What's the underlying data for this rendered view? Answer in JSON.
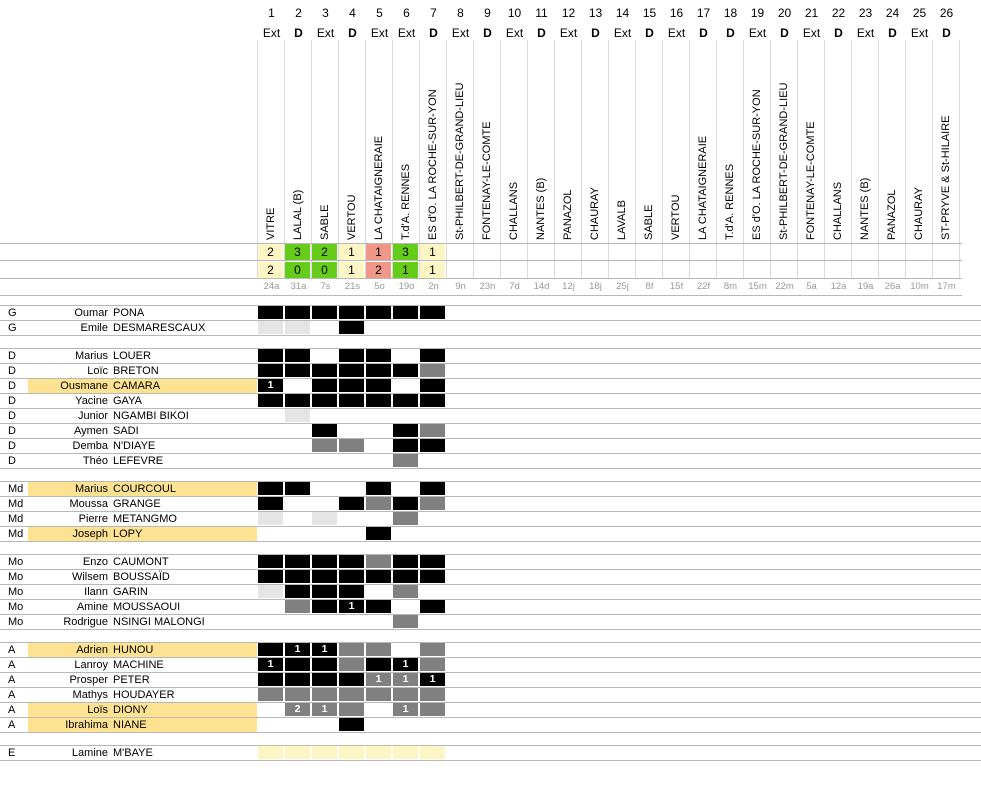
{
  "colors": {
    "black": "#000000",
    "gray": "#808080",
    "light": "#e5e5e5",
    "win": "#66cc1a",
    "loss": "#f19788",
    "draw": "#fdf5c4",
    "highlight": "#fde291",
    "empty": "#ececec"
  },
  "matches": [
    {
      "n": "1",
      "ha": "Ext",
      "opp": "VITRE",
      "s1": "2",
      "s2": "2",
      "date": "24a",
      "res": "draw"
    },
    {
      "n": "2",
      "ha": "D",
      "opp": "LALAL (B)",
      "s1": "3",
      "s2": "0",
      "date": "31a",
      "res": "win"
    },
    {
      "n": "3",
      "ha": "Ext",
      "opp": "SABLE",
      "s1": "2",
      "s2": "0",
      "date": "7s",
      "res": "win"
    },
    {
      "n": "4",
      "ha": "D",
      "opp": "VERTOU",
      "s1": "1",
      "s2": "1",
      "date": "21s",
      "res": "draw"
    },
    {
      "n": "5",
      "ha": "Ext",
      "opp": "LA CHATAIGNERAIE",
      "s1": "1",
      "s2": "2",
      "date": "5o",
      "res": "loss"
    },
    {
      "n": "6",
      "ha": "Ext",
      "opp": "T.d'A. RENNES",
      "s1": "3",
      "s2": "1",
      "date": "19o",
      "res": "win"
    },
    {
      "n": "7",
      "ha": "D",
      "opp": "ES d'O. LA ROCHE-SUR-YON",
      "s1": "1",
      "s2": "1",
      "date": "2n",
      "res": "draw"
    },
    {
      "n": "8",
      "ha": "Ext",
      "opp": "St-PHILBERT-DE-GRAND-LIEU",
      "s1": "",
      "s2": "",
      "date": "9n",
      "res": "none"
    },
    {
      "n": "9",
      "ha": "D",
      "opp": "FONTENAY-LE-COMTE",
      "s1": "",
      "s2": "",
      "date": "23n",
      "res": "none"
    },
    {
      "n": "10",
      "ha": "Ext",
      "opp": "CHALLANS",
      "s1": "",
      "s2": "",
      "date": "7d",
      "res": "none"
    },
    {
      "n": "11",
      "ha": "D",
      "opp": "NANTES (B)",
      "s1": "",
      "s2": "",
      "date": "14d",
      "res": "none"
    },
    {
      "n": "12",
      "ha": "Ext",
      "opp": "PANAZOL",
      "s1": "",
      "s2": "",
      "date": "12j",
      "res": "none"
    },
    {
      "n": "13",
      "ha": "D",
      "opp": "CHAURAY",
      "s1": "",
      "s2": "",
      "date": "18j",
      "res": "none"
    },
    {
      "n": "14",
      "ha": "Ext",
      "opp": "LAVALB",
      "s1": "",
      "s2": "",
      "date": "25j",
      "res": "none"
    },
    {
      "n": "15",
      "ha": "D",
      "opp": "SABLE",
      "s1": "",
      "s2": "",
      "date": "8f",
      "res": "none"
    },
    {
      "n": "16",
      "ha": "Ext",
      "opp": "VERTOU",
      "s1": "",
      "s2": "",
      "date": "15f",
      "res": "none"
    },
    {
      "n": "17",
      "ha": "D",
      "opp": "LA CHATAIGNERAIE",
      "s1": "",
      "s2": "",
      "date": "22f",
      "res": "none"
    },
    {
      "n": "18",
      "ha": "D",
      "opp": "T.d'A. RENNES",
      "s1": "",
      "s2": "",
      "date": "8m",
      "res": "none"
    },
    {
      "n": "19",
      "ha": "Ext",
      "opp": "ES d'O. LA ROCHE-SUR-YON",
      "s1": "",
      "s2": "",
      "date": "15m",
      "res": "none"
    },
    {
      "n": "20",
      "ha": "D",
      "opp": "St-PHILBERT-DE-GRAND-LIEU",
      "s1": "",
      "s2": "",
      "date": "22m",
      "res": "none"
    },
    {
      "n": "21",
      "ha": "Ext",
      "opp": "FONTENAY-LE-COMTE",
      "s1": "",
      "s2": "",
      "date": "5a",
      "res": "none"
    },
    {
      "n": "22",
      "ha": "D",
      "opp": "CHALLANS",
      "s1": "",
      "s2": "",
      "date": "12a",
      "res": "none"
    },
    {
      "n": "23",
      "ha": "Ext",
      "opp": "NANTES (B)",
      "s1": "",
      "s2": "",
      "date": "19a",
      "res": "none"
    },
    {
      "n": "24",
      "ha": "D",
      "opp": "PANAZOL",
      "s1": "",
      "s2": "",
      "date": "26a",
      "res": "none"
    },
    {
      "n": "25",
      "ha": "Ext",
      "opp": "CHAURAY",
      "s1": "",
      "s2": "",
      "date": "10m",
      "res": "none"
    },
    {
      "n": "26",
      "ha": "D",
      "opp": "ST-PRYVE & St-HILAIRE",
      "s1": "",
      "s2": "",
      "date": "17m",
      "res": "none"
    }
  ],
  "groups": [
    {
      "players": [
        {
          "pos": "G",
          "first": "Oumar",
          "last": "PONA",
          "hl": false,
          "cells": [
            "B",
            "B",
            "B",
            "B",
            "B",
            "B",
            "B"
          ]
        },
        {
          "pos": "G",
          "first": "Emile",
          "last": "DESMARESCAUX",
          "hl": false,
          "cells": [
            "L",
            "L",
            "",
            "B",
            "",
            "",
            ""
          ]
        }
      ]
    },
    {
      "players": [
        {
          "pos": "D",
          "first": "Marius",
          "last": "LOUER",
          "hl": false,
          "cells": [
            "B",
            "B",
            "",
            "B",
            "B",
            "",
            "B"
          ]
        },
        {
          "pos": "D",
          "first": "Loïc",
          "last": "BRETON",
          "hl": false,
          "cells": [
            "B",
            "B",
            "B",
            "B",
            "B",
            "B",
            "G"
          ]
        },
        {
          "pos": "D",
          "first": "Ousmane",
          "last": "CAMARA",
          "hl": true,
          "cells": [
            "B1",
            "",
            "B",
            "B",
            "B",
            "",
            "B"
          ]
        },
        {
          "pos": "D",
          "first": "Yacine",
          "last": "GAYA",
          "hl": false,
          "cells": [
            "B",
            "B",
            "B",
            "B",
            "B",
            "B",
            "B"
          ]
        },
        {
          "pos": "D",
          "first": "Junior",
          "last": "NGAMBI BIKOI",
          "hl": false,
          "cells": [
            "",
            "L",
            "",
            "",
            "",
            "",
            ""
          ]
        },
        {
          "pos": "D",
          "first": "Aymen",
          "last": "SADI",
          "hl": false,
          "cells": [
            "",
            "",
            "B",
            "",
            "",
            "B",
            "G"
          ]
        },
        {
          "pos": "D",
          "first": "Demba",
          "last": "N'DIAYE",
          "hl": false,
          "cells": [
            "",
            "",
            "G",
            "G",
            "",
            "B",
            "B"
          ]
        },
        {
          "pos": "D",
          "first": "Théo",
          "last": "LEFEVRE",
          "hl": false,
          "cells": [
            "",
            "",
            "",
            "",
            "",
            "G",
            ""
          ]
        }
      ]
    },
    {
      "players": [
        {
          "pos": "Md",
          "first": "Marius",
          "last": "COURCOUL",
          "hl": true,
          "cells": [
            "B",
            "B",
            "",
            "",
            "B",
            "",
            "B"
          ]
        },
        {
          "pos": "Md",
          "first": "Moussa",
          "last": "GRANGE",
          "hl": false,
          "cells": [
            "B",
            "",
            "",
            "B",
            "G",
            "B",
            "G"
          ]
        },
        {
          "pos": "Md",
          "first": "Pierre",
          "last": "METANGMO",
          "hl": false,
          "cells": [
            "L",
            "",
            "L",
            "",
            "",
            "G",
            ""
          ]
        },
        {
          "pos": "Md",
          "first": "Joseph",
          "last": "LOPY",
          "hl": true,
          "cells": [
            "",
            "",
            "",
            "",
            "B",
            "",
            ""
          ]
        }
      ]
    },
    {
      "players": [
        {
          "pos": "Mo",
          "first": "Enzo",
          "last": "CAUMONT",
          "hl": false,
          "cells": [
            "B",
            "B",
            "B",
            "B",
            "G",
            "B",
            "B"
          ]
        },
        {
          "pos": "Mo",
          "first": "Wilsem",
          "last": "BOUSSAÏD",
          "hl": false,
          "cells": [
            "B",
            "B",
            "B",
            "B",
            "B",
            "B",
            "B"
          ]
        },
        {
          "pos": "Mo",
          "first": "Ilann",
          "last": "GARIN",
          "hl": false,
          "cells": [
            "L",
            "B",
            "B",
            "B",
            "",
            "G",
            ""
          ]
        },
        {
          "pos": "Mo",
          "first": "Amine",
          "last": "MOUSSAOUI",
          "hl": false,
          "cells": [
            "",
            "G",
            "B",
            "B1",
            "B",
            "",
            "B"
          ]
        },
        {
          "pos": "Mo",
          "first": "Rodrigue",
          "last": "NSINGI MALONGI",
          "hl": false,
          "cells": [
            "",
            "",
            "",
            "",
            "",
            "G",
            ""
          ]
        }
      ]
    },
    {
      "players": [
        {
          "pos": "A",
          "first": "Adrien",
          "last": "HUNOU",
          "hl": true,
          "cells": [
            "B",
            "B1",
            "B1",
            "G",
            "G",
            "",
            "G"
          ]
        },
        {
          "pos": "A",
          "first": "Lanroy",
          "last": "MACHINE",
          "hl": false,
          "cells": [
            "B1",
            "B",
            "B",
            "G",
            "B",
            "B1",
            "G"
          ]
        },
        {
          "pos": "A",
          "first": "Prosper",
          "last": "PETER",
          "hl": false,
          "cells": [
            "B",
            "B",
            "B",
            "B",
            "G1",
            "G1",
            "B1"
          ]
        },
        {
          "pos": "A",
          "first": "Mathys",
          "last": "HOUDAYER",
          "hl": false,
          "cells": [
            "G",
            "G",
            "G",
            "G",
            "G",
            "G",
            "G"
          ]
        },
        {
          "pos": "A",
          "first": "Loïs",
          "last": "DIONY",
          "hl": true,
          "cells": [
            "",
            "G2",
            "G1",
            "G",
            "",
            "G1",
            "G"
          ]
        },
        {
          "pos": "A",
          "first": "Ibrahima",
          "last": "NIANE",
          "hl": true,
          "cells": [
            "",
            "",
            "",
            "B",
            "",
            "",
            ""
          ]
        }
      ]
    },
    {
      "players": [
        {
          "pos": "E",
          "first": "Lamine",
          "last": "M'BAYE",
          "hl": false,
          "cells": [
            "D",
            "D",
            "D",
            "D",
            "D",
            "D",
            "D"
          ]
        }
      ]
    }
  ]
}
